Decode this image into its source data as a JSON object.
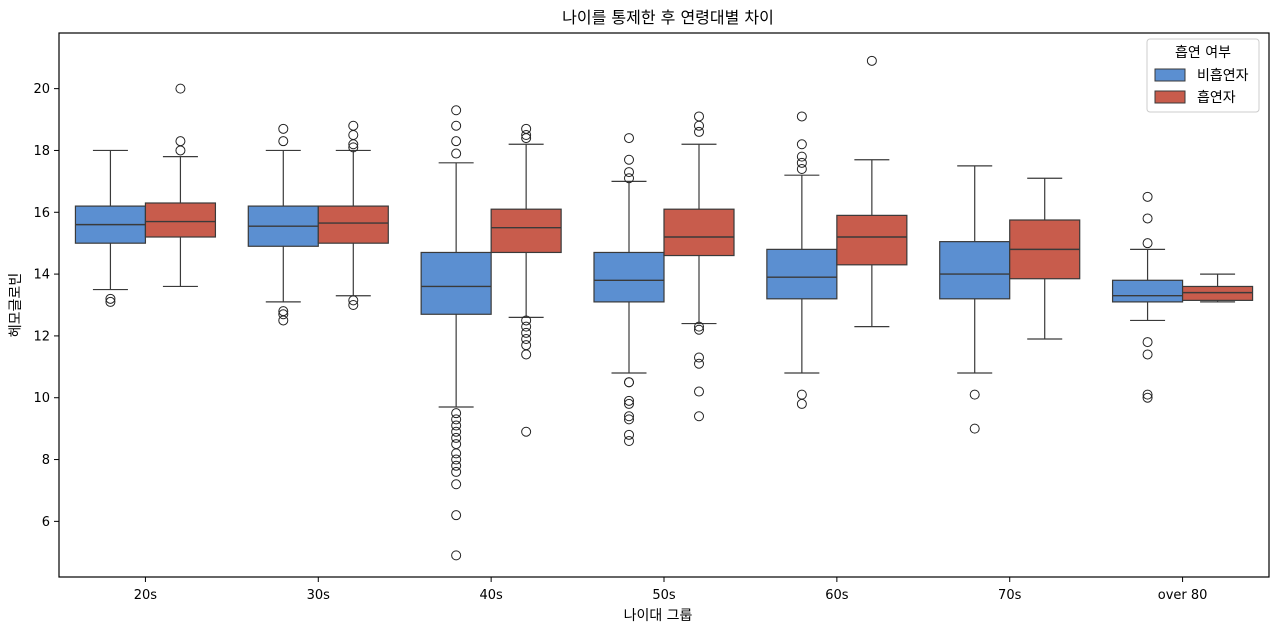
{
  "chart_data": {
    "type": "box",
    "title": "나이를 통제한 후 연령대별 차이",
    "xlabel": "나이대 그룹",
    "ylabel": "헤모글로빈",
    "ylim": [
      4.2,
      21.8
    ],
    "yticks": [
      6,
      8,
      10,
      12,
      14,
      16,
      18,
      20
    ],
    "categories": [
      "20s",
      "30s",
      "40s",
      "50s",
      "60s",
      "70s",
      "over 80"
    ],
    "legend": {
      "title": "흡연 여부",
      "position": "top-right"
    },
    "series": [
      {
        "name": "비흡연자",
        "color": "#5b8fd1",
        "boxes": [
          {
            "whislo": 13.5,
            "q1": 15.0,
            "med": 15.6,
            "q3": 16.2,
            "whishi": 18.0,
            "fliers": [
              13.1,
              13.2
            ]
          },
          {
            "whislo": 13.1,
            "q1": 14.9,
            "med": 15.55,
            "q3": 16.2,
            "whishi": 18.0,
            "fliers": [
              12.5,
              12.7,
              12.8,
              18.3,
              18.7
            ]
          },
          {
            "whislo": 9.7,
            "q1": 12.7,
            "med": 13.6,
            "q3": 14.7,
            "whishi": 17.6,
            "fliers": [
              4.9,
              6.2,
              7.2,
              7.6,
              7.8,
              8.0,
              8.2,
              8.5,
              8.7,
              8.9,
              9.1,
              9.3,
              9.5,
              17.9,
              18.3,
              18.8,
              19.3
            ]
          },
          {
            "whislo": 10.8,
            "q1": 13.1,
            "med": 13.8,
            "q3": 14.7,
            "whishi": 17.0,
            "fliers": [
              8.6,
              8.8,
              9.3,
              9.4,
              9.8,
              9.9,
              10.5,
              10.5,
              17.1,
              17.3,
              17.7,
              18.4
            ]
          },
          {
            "whislo": 10.8,
            "q1": 13.2,
            "med": 13.9,
            "q3": 14.8,
            "whishi": 17.2,
            "fliers": [
              9.8,
              10.1,
              17.4,
              17.6,
              17.8,
              18.2,
              19.1
            ]
          },
          {
            "whislo": 10.8,
            "q1": 13.2,
            "med": 14.0,
            "q3": 15.05,
            "whishi": 17.5,
            "fliers": [
              9.0,
              10.1
            ]
          },
          {
            "whislo": 12.5,
            "q1": 13.1,
            "med": 13.3,
            "q3": 13.8,
            "whishi": 14.8,
            "fliers": [
              10.0,
              10.1,
              11.4,
              11.8,
              15.0,
              15.8,
              16.5
            ]
          }
        ]
      },
      {
        "name": "흡연자",
        "color": "#c85c4c",
        "boxes": [
          {
            "whislo": 13.6,
            "q1": 15.2,
            "med": 15.7,
            "q3": 16.3,
            "whishi": 17.8,
            "fliers": [
              18.0,
              18.3,
              20.0
            ]
          },
          {
            "whislo": 13.3,
            "q1": 15.0,
            "med": 15.65,
            "q3": 16.2,
            "whishi": 18.0,
            "fliers": [
              13.0,
              13.15,
              18.1,
              18.2,
              18.5,
              18.8
            ]
          },
          {
            "whislo": 12.6,
            "q1": 14.7,
            "med": 15.5,
            "q3": 16.1,
            "whishi": 18.2,
            "fliers": [
              8.9,
              11.4,
              11.7,
              11.9,
              12.1,
              12.3,
              12.5,
              18.4,
              18.5,
              18.7
            ]
          },
          {
            "whislo": 12.4,
            "q1": 14.6,
            "med": 15.2,
            "q3": 16.1,
            "whishi": 18.2,
            "fliers": [
              9.4,
              10.2,
              11.1,
              11.3,
              12.2,
              12.3,
              18.6,
              18.8,
              19.1
            ]
          },
          {
            "whislo": 12.3,
            "q1": 14.3,
            "med": 15.2,
            "q3": 15.9,
            "whishi": 17.7,
            "fliers": [
              20.9
            ]
          },
          {
            "whislo": 11.9,
            "q1": 13.85,
            "med": 14.8,
            "q3": 15.75,
            "whishi": 17.1,
            "fliers": []
          },
          {
            "whislo": 13.1,
            "q1": 13.15,
            "med": 13.4,
            "q3": 13.6,
            "whishi": 14.0,
            "fliers": []
          }
        ]
      }
    ]
  }
}
